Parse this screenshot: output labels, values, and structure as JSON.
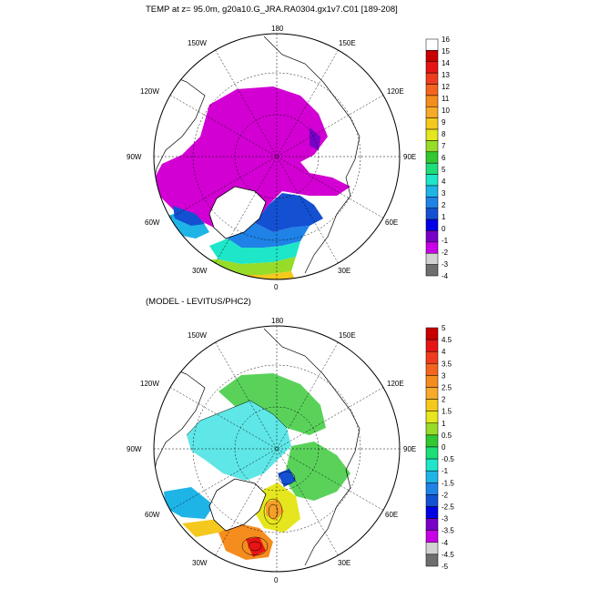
{
  "chart_data": [
    {
      "type": "heatmap",
      "projection": "north polar stereographic",
      "title": "TEMP at z=  95.0m, g20a10.G_JRA.RA0304.gx1v7.C01 [189-208]",
      "lon_labels": [
        "180",
        "150E",
        "120E",
        "90E",
        "60E",
        "30E",
        "0",
        "30W",
        "60W",
        "90W",
        "120W",
        "150W"
      ],
      "colorbar": {
        "levels": [
          "16",
          "15",
          "14",
          "13",
          "12",
          "11",
          "10",
          "9",
          "8",
          "7",
          "6",
          "5",
          "4",
          "3",
          "2",
          "1",
          "0",
          "-1",
          "-2",
          "-3",
          "-4"
        ],
        "colors": [
          "#ffffff",
          "#c80000",
          "#e61414",
          "#f03c1e",
          "#f5641e",
          "#f58c1e",
          "#f5aa28",
          "#f5c81e",
          "#e6e61e",
          "#96dc28",
          "#32c832",
          "#1ede78",
          "#1ee6c8",
          "#1eb4e6",
          "#1e82e6",
          "#1450d2",
          "#0000e6",
          "#7800c8",
          "#c800e6",
          "#d2d2d2",
          "#6e6e6e"
        ]
      }
    },
    {
      "type": "heatmap",
      "projection": "north polar stereographic",
      "title": "(MODEL - LEVITUS/PHC2)",
      "lon_labels": [
        "180",
        "150E",
        "120E",
        "90E",
        "60E",
        "30E",
        "0",
        "30W",
        "60W",
        "90W",
        "120W",
        "150W"
      ],
      "colorbar": {
        "levels": [
          "5",
          "4.5",
          "4",
          "3.5",
          "3",
          "2.5",
          "2",
          "1.5",
          "1",
          "0.5",
          "0",
          "-0.5",
          "-1",
          "-1.5",
          "-2",
          "-2.5",
          "-3",
          "-3.5",
          "-4",
          "-4.5",
          "-5"
        ],
        "colors": [
          "#c80000",
          "#e61414",
          "#f03c1e",
          "#f5641e",
          "#f58c1e",
          "#f5aa28",
          "#f5c81e",
          "#e6e61e",
          "#96dc28",
          "#32c832",
          "#1ede78",
          "#1ee6c8",
          "#1eb4e6",
          "#1e82e6",
          "#1450d2",
          "#0000e6",
          "#7800c8",
          "#c800e6",
          "#d2d2d2",
          "#6e6e6e"
        ]
      }
    }
  ],
  "colors": {
    "ice_magenta": "#d200d2",
    "cyan": "#5fe6e6",
    "green": "#5ad25a"
  }
}
